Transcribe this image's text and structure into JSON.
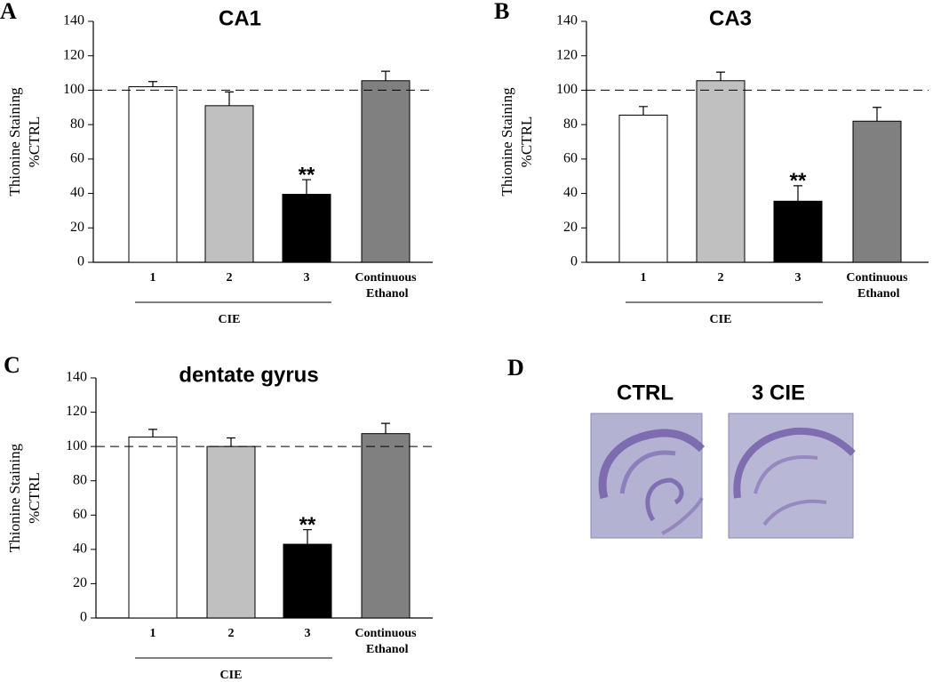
{
  "chart_data": [
    {
      "type": "bar",
      "panel": "A",
      "title": "CA1",
      "ylabel": [
        "Thionine Staining",
        "%CTRL"
      ],
      "categories": [
        "1",
        "2",
        "3",
        "Continuous Ethanol"
      ],
      "group_label": "CIE",
      "values": [
        102,
        91,
        39.5,
        105.5
      ],
      "errors": [
        3,
        8,
        8.5,
        5.5
      ],
      "colors": [
        "#ffffff",
        "#c0c0c0",
        "#000000",
        "#808080"
      ],
      "reference_line": 100,
      "annotations": [
        {
          "text": "**",
          "category": "3"
        }
      ],
      "ylim": [
        0,
        140
      ],
      "yticks": [
        0,
        20,
        40,
        60,
        80,
        100,
        120,
        140
      ],
      "grid": false
    },
    {
      "type": "bar",
      "panel": "B",
      "title": "CA3",
      "ylabel": [
        "Thionine Staining",
        "%CTRL"
      ],
      "categories": [
        "1",
        "2",
        "3",
        "Continuous Ethanol"
      ],
      "group_label": "CIE",
      "values": [
        85.5,
        105.5,
        35.5,
        82
      ],
      "errors": [
        5,
        5,
        9,
        8
      ],
      "colors": [
        "#ffffff",
        "#c0c0c0",
        "#000000",
        "#808080"
      ],
      "reference_line": 100,
      "annotations": [
        {
          "text": "**",
          "category": "3"
        }
      ],
      "ylim": [
        0,
        140
      ],
      "yticks": [
        0,
        20,
        40,
        60,
        80,
        100,
        120,
        140
      ],
      "grid": false
    },
    {
      "type": "bar",
      "panel": "C",
      "title": "dentate gyrus",
      "ylabel": [
        "Thionine Staining",
        "%CTRL"
      ],
      "categories": [
        "1",
        "2",
        "3",
        "Continuous Ethanol"
      ],
      "group_label": "CIE",
      "values": [
        105.5,
        100,
        43,
        107.5
      ],
      "errors": [
        4.5,
        5,
        8.5,
        6
      ],
      "colors": [
        "#ffffff",
        "#c0c0c0",
        "#000000",
        "#808080"
      ],
      "reference_line": 100,
      "annotations": [
        {
          "text": "**",
          "category": "3"
        }
      ],
      "ylim": [
        0,
        140
      ],
      "yticks": [
        0,
        20,
        40,
        60,
        80,
        100,
        120,
        140
      ],
      "grid": false
    }
  ],
  "panel_d": {
    "label": "D",
    "images": [
      {
        "label": "CTRL"
      },
      {
        "label": "3 CIE"
      }
    ]
  }
}
